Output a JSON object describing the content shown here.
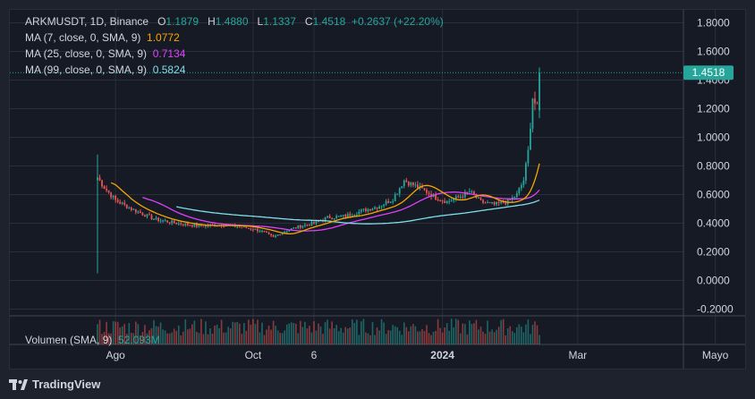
{
  "header": {
    "symbol": "ARKMUSDT, 1D, Binance",
    "open_label": "O",
    "open": "1.1879",
    "high_label": "H",
    "high": "1.4880",
    "low_label": "L",
    "low": "1.1337",
    "close_label": "C",
    "close": "1.4518",
    "change": "+0.2637 (+22.20%)"
  },
  "indicators": [
    {
      "label": "MA (7, close, 0, SMA, 9)",
      "value": "1.0772",
      "color": "#f7a600"
    },
    {
      "label": "MA (25, close, 0, SMA, 9)",
      "value": "0.7134",
      "color": "#e040fb"
    },
    {
      "label": "MA (99, close, 0, SMA, 9)",
      "value": "0.5824",
      "color": "#80deea"
    }
  ],
  "volume": {
    "label": "Volumen (SMA, 9)",
    "value": "52.093M"
  },
  "price_badge": "1.4518",
  "brand": "TradingView",
  "colors": {
    "up": "#26a69a",
    "down": "#ef5350",
    "grid": "#2a2e39",
    "text": "#d1d4dc"
  },
  "chart_data": {
    "type": "candlestick",
    "y_ticks": [
      "1.8000",
      "1.6000",
      "1.4000",
      "1.2000",
      "1.0000",
      "0.8000",
      "0.6000",
      "0.4000",
      "0.2000",
      "0.0000",
      "-0.2000"
    ],
    "ylim": [
      -0.2,
      1.8
    ],
    "x_ticks": [
      "Ago",
      "Oct",
      "6",
      "2024",
      "Mar",
      "Mayo"
    ],
    "x_tick_days": [
      8,
      69,
      96,
      153,
      213,
      274
    ],
    "last_price": 1.4518,
    "price_anchors": [
      [
        0,
        0.72
      ],
      [
        3,
        0.65
      ],
      [
        8,
        0.56
      ],
      [
        15,
        0.5
      ],
      [
        25,
        0.43
      ],
      [
        35,
        0.4
      ],
      [
        45,
        0.38
      ],
      [
        55,
        0.39
      ],
      [
        65,
        0.37
      ],
      [
        72,
        0.35
      ],
      [
        78,
        0.3
      ],
      [
        82,
        0.34
      ],
      [
        90,
        0.38
      ],
      [
        96,
        0.4
      ],
      [
        102,
        0.44
      ],
      [
        110,
        0.45
      ],
      [
        118,
        0.49
      ],
      [
        125,
        0.52
      ],
      [
        131,
        0.57
      ],
      [
        136,
        0.7
      ],
      [
        141,
        0.66
      ],
      [
        146,
        0.62
      ],
      [
        150,
        0.58
      ],
      [
        155,
        0.55
      ],
      [
        160,
        0.58
      ],
      [
        165,
        0.62
      ],
      [
        170,
        0.55
      ],
      [
        176,
        0.53
      ],
      [
        182,
        0.55
      ],
      [
        186,
        0.6
      ],
      [
        189,
        0.7
      ],
      [
        191,
        0.9
      ],
      [
        193,
        1.28
      ],
      [
        195,
        1.2
      ],
      [
        196,
        1.4518
      ]
    ],
    "start_spike": {
      "high": 0.88,
      "low": 0.05
    },
    "series": [
      {
        "name": "MA (7, close, 0, SMA, 9)",
        "last": 1.0772
      },
      {
        "name": "MA (25, close, 0, SMA, 9)",
        "last": 0.7134
      },
      {
        "name": "MA (99, close, 0, SMA, 9)",
        "last": 0.5824
      }
    ]
  }
}
